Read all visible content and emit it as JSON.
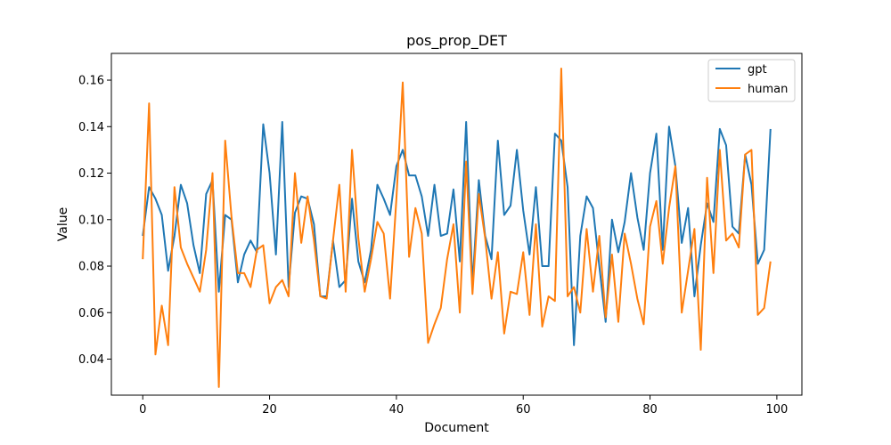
{
  "chart_data": {
    "type": "line",
    "title": "pos_prop_DET",
    "xlabel": "Document",
    "ylabel": "Value",
    "xlim": [
      -4.95,
      103.95
    ],
    "ylim": [
      0.0245,
      0.1715
    ],
    "xticks": [
      0,
      20,
      40,
      60,
      80,
      100
    ],
    "yticks": [
      0.04,
      0.06,
      0.08,
      0.1,
      0.12,
      0.14,
      0.16
    ],
    "xtick_labels": [
      "0",
      "20",
      "40",
      "60",
      "80",
      "100"
    ],
    "ytick_labels": [
      "0.04",
      "0.06",
      "0.08",
      "0.10",
      "0.12",
      "0.14",
      "0.16"
    ],
    "legend_position": "top-right",
    "grid": false,
    "series": [
      {
        "name": "gpt",
        "color": "#1f77b4",
        "values": [
          0.093,
          0.114,
          0.109,
          0.102,
          0.078,
          0.093,
          0.115,
          0.107,
          0.089,
          0.077,
          0.111,
          0.117,
          0.069,
          0.102,
          0.1,
          0.073,
          0.085,
          0.091,
          0.086,
          0.141,
          0.12,
          0.085,
          0.142,
          0.071,
          0.103,
          0.11,
          0.109,
          0.098,
          0.067,
          0.067,
          0.091,
          0.071,
          0.074,
          0.109,
          0.082,
          0.073,
          0.087,
          0.115,
          0.109,
          0.102,
          0.123,
          0.13,
          0.119,
          0.119,
          0.11,
          0.093,
          0.115,
          0.093,
          0.094,
          0.113,
          0.082,
          0.142,
          0.072,
          0.117,
          0.093,
          0.083,
          0.134,
          0.102,
          0.106,
          0.13,
          0.104,
          0.085,
          0.114,
          0.08,
          0.08,
          0.137,
          0.134,
          0.114,
          0.046,
          0.093,
          0.11,
          0.105,
          0.08,
          0.056,
          0.1,
          0.086,
          0.099,
          0.12,
          0.101,
          0.087,
          0.12,
          0.137,
          0.087,
          0.14,
          0.123,
          0.09,
          0.105,
          0.067,
          0.089,
          0.107,
          0.099,
          0.139,
          0.132,
          0.097,
          0.094,
          0.128,
          0.115,
          0.081,
          0.087,
          0.139
        ]
      },
      {
        "name": "human",
        "color": "#ff7f0e",
        "values": [
          0.083,
          0.15,
          0.042,
          0.063,
          0.046,
          0.114,
          0.088,
          0.081,
          0.075,
          0.069,
          0.087,
          0.12,
          0.028,
          0.134,
          0.101,
          0.077,
          0.077,
          0.071,
          0.087,
          0.089,
          0.064,
          0.071,
          0.074,
          0.067,
          0.12,
          0.09,
          0.11,
          0.091,
          0.067,
          0.066,
          0.091,
          0.115,
          0.069,
          0.13,
          0.092,
          0.069,
          0.083,
          0.099,
          0.094,
          0.066,
          0.109,
          0.159,
          0.084,
          0.105,
          0.094,
          0.047,
          0.055,
          0.062,
          0.083,
          0.098,
          0.06,
          0.125,
          0.068,
          0.111,
          0.092,
          0.066,
          0.086,
          0.051,
          0.069,
          0.068,
          0.086,
          0.059,
          0.098,
          0.054,
          0.067,
          0.065,
          0.165,
          0.067,
          0.071,
          0.06,
          0.096,
          0.069,
          0.093,
          0.058,
          0.085,
          0.056,
          0.094,
          0.081,
          0.066,
          0.055,
          0.097,
          0.108,
          0.081,
          0.105,
          0.123,
          0.06,
          0.078,
          0.096,
          0.044,
          0.118,
          0.077,
          0.13,
          0.091,
          0.094,
          0.088,
          0.128,
          0.13,
          0.059,
          0.062,
          0.082
        ]
      }
    ]
  }
}
